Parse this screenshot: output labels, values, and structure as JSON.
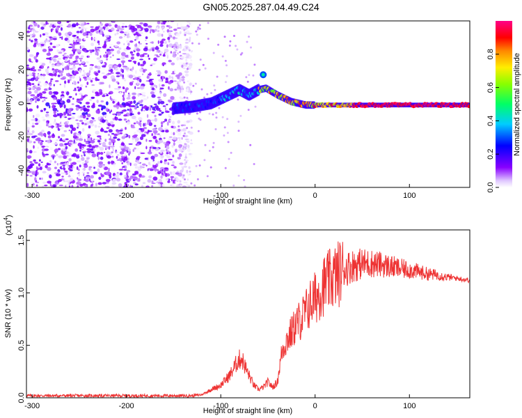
{
  "title": "GN05.2025.287.04.49.C24",
  "colors": {
    "snr_line": "#ee3333",
    "background": "#ffffff",
    "axis": "#000000"
  },
  "chart_data": [
    {
      "type": "heatmap",
      "title": "GN05.2025.287.04.49.C24",
      "xlabel": "Height of straight line (km)",
      "ylabel": "Frequency (Hz)",
      "xlim": [
        -306,
        164
      ],
      "ylim": [
        -50,
        49
      ],
      "x_ticks": [
        -300,
        -200,
        -100,
        0,
        100
      ],
      "x_tick_labels": [
        "-300",
        "-200",
        "-100",
        "0",
        "100"
      ],
      "y_ticks": [
        -40,
        -20,
        0,
        20,
        40
      ],
      "y_tick_labels": [
        "-40",
        "-20",
        "0",
        "20",
        "40"
      ],
      "colorbar": {
        "label": "Normalized spectral amplitude",
        "range": [
          0,
          1
        ],
        "ticks": [
          0.0,
          0.2,
          0.4,
          0.6,
          0.8
        ],
        "tick_labels": [
          "0.0",
          "0.2",
          "0.4",
          "0.6",
          "0.8"
        ],
        "colormap": "rainbow (white → violet → blue → cyan → green → yellow → red → magenta)"
      },
      "ridge": {
        "description": "dominant frequency ridge",
        "points": [
          {
            "x": -150,
            "y": -3
          },
          {
            "x": -130,
            "y": -2
          },
          {
            "x": -110,
            "y": 0
          },
          {
            "x": -95,
            "y": 4
          },
          {
            "x": -80,
            "y": 8
          },
          {
            "x": -70,
            "y": 5
          },
          {
            "x": -60,
            "y": 8
          },
          {
            "x": -52,
            "y": 9
          },
          {
            "x": -40,
            "y": 5
          },
          {
            "x": -25,
            "y": 1
          },
          {
            "x": -10,
            "y": -1
          },
          {
            "x": 0,
            "y": -1
          },
          {
            "x": 20,
            "y": -1
          },
          {
            "x": 60,
            "y": -1
          },
          {
            "x": 100,
            "y": -1
          },
          {
            "x": 164,
            "y": -1
          }
        ]
      },
      "grid": false
    },
    {
      "type": "line",
      "xlabel": "Height of straight line (km)",
      "ylabel": "SNR (10 * v/v)",
      "y_multiplier_label": "(x10",
      "y_multiplier_exp": "4",
      "xlim": [
        -306,
        164
      ],
      "ylim": [
        0,
        1.6
      ],
      "x_ticks": [
        -300,
        -200,
        -100,
        0,
        100
      ],
      "x_tick_labels": [
        "-300",
        "-200",
        "-100",
        "0",
        "100"
      ],
      "y_ticks": [
        0.0,
        0.5,
        1.0,
        1.5
      ],
      "y_tick_labels": [
        "0.0",
        "0.5",
        "1.0",
        "1.5"
      ],
      "series": [
        {
          "color": "#ee3333",
          "x": [
            -306,
            -280,
            -250,
            -220,
            -200,
            -180,
            -150,
            -130,
            -120,
            -110,
            -100,
            -90,
            -82,
            -78,
            -72,
            -65,
            -60,
            -55,
            -50,
            -45,
            -40,
            -35,
            -30,
            -25,
            -20,
            -15,
            -10,
            -5,
            0,
            10,
            20,
            30,
            40,
            50,
            60,
            70,
            80,
            90,
            100,
            110,
            120,
            130,
            140,
            150,
            164
          ],
          "y": [
            0.02,
            0.02,
            0.02,
            0.02,
            0.02,
            0.02,
            0.02,
            0.02,
            0.03,
            0.08,
            0.12,
            0.22,
            0.35,
            0.38,
            0.25,
            0.12,
            0.08,
            0.1,
            0.15,
            0.1,
            0.15,
            0.45,
            0.55,
            0.62,
            0.7,
            0.75,
            0.82,
            0.9,
            0.95,
            1.08,
            1.15,
            1.22,
            1.26,
            1.28,
            1.28,
            1.27,
            1.25,
            1.23,
            1.22,
            1.2,
            1.18,
            1.17,
            1.15,
            1.14,
            1.12
          ]
        }
      ],
      "grid": false
    }
  ]
}
